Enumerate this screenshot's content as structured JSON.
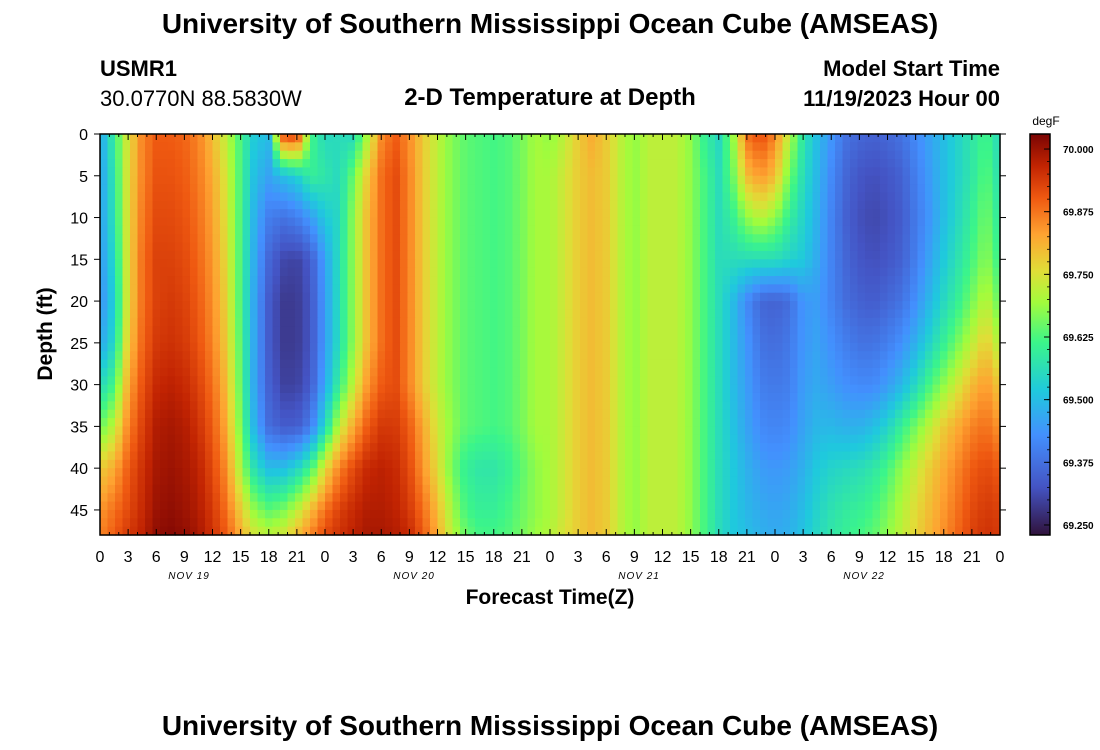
{
  "header": {
    "title": "University of Southern Mississippi Ocean Cube (AMSEAS)",
    "station_id": "USMR1",
    "coordinates": "30.0770N  88.5830W",
    "plot_title": "2-D Temperature at Depth",
    "model_start_label": "Model Start Time",
    "model_start_value": "11/19/2023 Hour 00"
  },
  "footer": {
    "title": "University of Southern Mississippi Ocean Cube (AMSEAS)"
  },
  "chart_data": {
    "type": "heatmap",
    "title": "2-D Temperature at Depth",
    "xlabel": "Forecast Time(Z)",
    "ylabel": "Depth (ft)",
    "units": "degF",
    "x_ticks": [
      "0",
      "3",
      "6",
      "9",
      "12",
      "15",
      "18",
      "21",
      "0",
      "3",
      "6",
      "9",
      "12",
      "15",
      "18",
      "21",
      "0",
      "3",
      "6",
      "9",
      "12",
      "15",
      "18",
      "21",
      "0",
      "3",
      "6",
      "9",
      "12",
      "15",
      "18",
      "21",
      "0"
    ],
    "date_labels": [
      "NOV 19",
      "NOV 20",
      "NOV 21",
      "NOV 22"
    ],
    "y_ticks": [
      "0",
      "5",
      "10",
      "15",
      "20",
      "25",
      "30",
      "35",
      "40",
      "45"
    ],
    "y_range_ft": [
      0,
      48
    ],
    "x_range_hours": [
      0,
      96
    ],
    "colorbar": {
      "label": "degF",
      "range": [
        69.23,
        70.03
      ],
      "ticks": [
        "70.000",
        "69.875",
        "69.750",
        "69.625",
        "69.500",
        "69.375",
        "69.250"
      ]
    },
    "depths_ft": [
      0,
      5,
      10,
      15,
      20,
      25,
      30,
      35,
      40,
      45,
      48
    ],
    "hours": [
      0,
      1.5,
      3,
      4.5,
      6,
      7.5,
      9,
      10.5,
      12,
      13.5,
      15,
      16.5,
      18,
      19.5,
      21,
      22.5,
      24,
      25.5,
      27,
      28.5,
      30,
      31.5,
      33,
      34.5,
      36,
      37.5,
      39,
      40.5,
      42,
      43.5,
      45,
      46.5,
      48,
      49.5,
      51,
      52.5,
      54,
      55.5,
      57,
      58.5,
      60,
      61.5,
      63,
      64.5,
      66,
      67.5,
      69,
      70.5,
      72,
      73.5,
      75,
      76.5,
      78,
      79.5,
      81,
      82.5,
      84,
      85.5,
      87,
      88.5,
      90,
      91.5,
      93,
      94.5,
      96
    ],
    "temperature_degF": [
      [
        69.46,
        69.6,
        69.75,
        69.86,
        69.9,
        69.9,
        69.89,
        69.86,
        69.8,
        69.72,
        69.62,
        69.52,
        69.5,
        69.92,
        69.95,
        69.62,
        69.55,
        69.56,
        69.55,
        69.7,
        69.85,
        69.9,
        69.85,
        69.78,
        69.72,
        69.67,
        69.64,
        69.63,
        69.62,
        69.63,
        69.66,
        69.7,
        69.68,
        69.72,
        69.78,
        69.82,
        69.78,
        69.72,
        69.68,
        69.72,
        69.72,
        69.72,
        69.68,
        69.6,
        69.55,
        69.68,
        69.88,
        69.92,
        69.86,
        69.72,
        69.58,
        69.5,
        69.44,
        69.38,
        69.36,
        69.35,
        69.36,
        69.38,
        69.42,
        69.46,
        69.5,
        69.54,
        69.58,
        69.62,
        69.55
      ],
      [
        69.45,
        69.58,
        69.76,
        69.86,
        69.91,
        69.91,
        69.9,
        69.87,
        69.82,
        69.74,
        69.62,
        69.5,
        69.46,
        69.5,
        69.53,
        69.6,
        69.58,
        69.55,
        69.65,
        69.78,
        69.88,
        69.92,
        69.86,
        69.78,
        69.72,
        69.67,
        69.64,
        69.63,
        69.62,
        69.63,
        69.66,
        69.7,
        69.7,
        69.74,
        69.78,
        69.8,
        69.78,
        69.72,
        69.68,
        69.72,
        69.72,
        69.72,
        69.68,
        69.62,
        69.56,
        69.65,
        69.8,
        69.84,
        69.8,
        69.66,
        69.56,
        69.49,
        69.42,
        69.36,
        69.33,
        69.32,
        69.33,
        69.35,
        69.4,
        69.45,
        69.5,
        69.54,
        69.58,
        69.64,
        69.56
      ],
      [
        69.45,
        69.57,
        69.76,
        69.87,
        69.92,
        69.92,
        69.91,
        69.88,
        69.83,
        69.75,
        69.62,
        69.48,
        69.4,
        69.38,
        69.4,
        69.45,
        69.52,
        69.55,
        69.68,
        69.8,
        69.88,
        69.92,
        69.86,
        69.78,
        69.72,
        69.67,
        69.64,
        69.63,
        69.62,
        69.63,
        69.66,
        69.7,
        69.7,
        69.74,
        69.78,
        69.8,
        69.78,
        69.72,
        69.68,
        69.72,
        69.72,
        69.72,
        69.68,
        69.62,
        69.56,
        69.6,
        69.68,
        69.72,
        69.68,
        69.6,
        69.54,
        69.48,
        69.41,
        69.35,
        69.32,
        69.31,
        69.32,
        69.34,
        69.39,
        69.44,
        69.5,
        69.55,
        69.6,
        69.66,
        69.58
      ],
      [
        69.44,
        69.55,
        69.76,
        69.88,
        69.93,
        69.93,
        69.92,
        69.89,
        69.84,
        69.76,
        69.62,
        69.47,
        69.36,
        69.31,
        69.3,
        69.34,
        69.46,
        69.56,
        69.68,
        69.8,
        69.88,
        69.92,
        69.86,
        69.78,
        69.72,
        69.67,
        69.64,
        69.63,
        69.62,
        69.63,
        69.66,
        69.7,
        69.7,
        69.74,
        69.78,
        69.8,
        69.78,
        69.72,
        69.68,
        69.72,
        69.72,
        69.72,
        69.68,
        69.62,
        69.56,
        69.56,
        69.56,
        69.56,
        69.56,
        69.54,
        69.52,
        69.47,
        69.41,
        69.36,
        69.33,
        69.32,
        69.33,
        69.35,
        69.4,
        69.46,
        69.52,
        69.57,
        69.62,
        69.68,
        69.6
      ],
      [
        69.43,
        69.53,
        69.76,
        69.88,
        69.93,
        69.94,
        69.93,
        69.9,
        69.85,
        69.77,
        69.62,
        69.46,
        69.34,
        69.29,
        69.29,
        69.33,
        69.45,
        69.56,
        69.68,
        69.8,
        69.88,
        69.92,
        69.86,
        69.78,
        69.72,
        69.67,
        69.64,
        69.63,
        69.62,
        69.63,
        69.66,
        69.7,
        69.7,
        69.74,
        69.78,
        69.8,
        69.78,
        69.72,
        69.68,
        69.72,
        69.72,
        69.72,
        69.68,
        69.62,
        69.56,
        69.5,
        69.42,
        69.36,
        69.35,
        69.37,
        69.44,
        69.45,
        69.41,
        69.37,
        69.35,
        69.34,
        69.36,
        69.38,
        69.43,
        69.49,
        69.55,
        69.6,
        69.66,
        69.72,
        69.64
      ],
      [
        69.46,
        69.55,
        69.78,
        69.89,
        69.94,
        69.95,
        69.94,
        69.91,
        69.86,
        69.78,
        69.63,
        69.46,
        69.34,
        69.29,
        69.29,
        69.33,
        69.45,
        69.56,
        69.68,
        69.8,
        69.88,
        69.92,
        69.86,
        69.78,
        69.72,
        69.67,
        69.64,
        69.63,
        69.62,
        69.63,
        69.66,
        69.7,
        69.7,
        69.74,
        69.78,
        69.8,
        69.78,
        69.72,
        69.68,
        69.72,
        69.72,
        69.72,
        69.68,
        69.62,
        69.56,
        69.5,
        69.44,
        69.38,
        69.37,
        69.39,
        69.44,
        69.46,
        69.43,
        69.4,
        69.38,
        69.38,
        69.4,
        69.43,
        69.48,
        69.54,
        69.6,
        69.66,
        69.72,
        69.78,
        69.7
      ],
      [
        69.55,
        69.62,
        69.82,
        69.91,
        69.96,
        69.97,
        69.96,
        69.93,
        69.88,
        69.8,
        69.64,
        69.46,
        69.35,
        69.3,
        69.3,
        69.34,
        69.47,
        69.6,
        69.72,
        69.84,
        69.9,
        69.92,
        69.86,
        69.78,
        69.72,
        69.67,
        69.64,
        69.63,
        69.62,
        69.63,
        69.66,
        69.7,
        69.7,
        69.74,
        69.78,
        69.8,
        69.78,
        69.72,
        69.68,
        69.72,
        69.72,
        69.72,
        69.68,
        69.62,
        69.56,
        69.5,
        69.45,
        69.4,
        69.39,
        69.4,
        69.45,
        69.47,
        69.45,
        69.43,
        69.42,
        69.42,
        69.45,
        69.49,
        69.55,
        69.62,
        69.68,
        69.74,
        69.8,
        69.84,
        69.78
      ],
      [
        69.65,
        69.72,
        69.86,
        69.93,
        69.98,
        69.99,
        69.98,
        69.95,
        69.9,
        69.82,
        69.66,
        69.48,
        69.37,
        69.34,
        69.34,
        69.4,
        69.55,
        69.72,
        69.82,
        69.9,
        69.94,
        69.94,
        69.9,
        69.82,
        69.74,
        69.68,
        69.64,
        69.63,
        69.62,
        69.63,
        69.66,
        69.7,
        69.7,
        69.74,
        69.78,
        69.8,
        69.78,
        69.72,
        69.68,
        69.72,
        69.72,
        69.72,
        69.68,
        69.62,
        69.56,
        69.51,
        69.46,
        69.42,
        69.41,
        69.42,
        69.46,
        69.49,
        69.49,
        69.48,
        69.48,
        69.5,
        69.54,
        69.6,
        69.66,
        69.72,
        69.78,
        69.82,
        69.86,
        69.88,
        69.84
      ],
      [
        69.78,
        69.82,
        69.9,
        69.95,
        69.99,
        70,
        69.99,
        69.97,
        69.92,
        69.85,
        69.7,
        69.56,
        69.5,
        69.5,
        69.54,
        69.62,
        69.76,
        69.86,
        69.92,
        69.96,
        69.97,
        69.96,
        69.92,
        69.84,
        69.76,
        69.66,
        69.6,
        69.58,
        69.58,
        69.6,
        69.64,
        69.68,
        69.7,
        69.74,
        69.78,
        69.8,
        69.78,
        69.72,
        69.68,
        69.72,
        69.72,
        69.72,
        69.68,
        69.62,
        69.56,
        69.52,
        69.48,
        69.45,
        69.44,
        69.45,
        69.48,
        69.52,
        69.54,
        69.55,
        69.56,
        69.58,
        69.62,
        69.68,
        69.73,
        69.78,
        69.82,
        69.86,
        69.9,
        69.92,
        69.9
      ],
      [
        69.84,
        69.88,
        69.92,
        69.96,
        70,
        70.01,
        70,
        69.98,
        69.94,
        69.88,
        69.78,
        69.68,
        69.64,
        69.66,
        69.72,
        69.8,
        69.88,
        69.93,
        69.96,
        69.98,
        69.98,
        69.97,
        69.94,
        69.88,
        69.8,
        69.7,
        69.62,
        69.6,
        69.6,
        69.62,
        69.65,
        69.68,
        69.7,
        69.74,
        69.78,
        69.8,
        69.78,
        69.72,
        69.68,
        69.72,
        69.72,
        69.72,
        69.68,
        69.62,
        69.56,
        69.52,
        69.49,
        69.47,
        69.46,
        69.47,
        69.5,
        69.54,
        69.57,
        69.59,
        69.6,
        69.62,
        69.66,
        69.71,
        69.76,
        69.8,
        69.84,
        69.88,
        69.92,
        69.94,
        69.93
      ],
      [
        69.86,
        69.9,
        69.94,
        69.97,
        70.01,
        70.02,
        70.01,
        69.99,
        69.95,
        69.9,
        69.82,
        69.74,
        69.72,
        69.74,
        69.8,
        69.86,
        69.92,
        69.95,
        69.97,
        69.99,
        69.99,
        69.98,
        69.96,
        69.9,
        69.82,
        69.72,
        69.65,
        69.62,
        69.62,
        69.63,
        69.66,
        69.69,
        69.71,
        69.75,
        69.78,
        69.8,
        69.78,
        69.72,
        69.68,
        69.72,
        69.72,
        69.72,
        69.68,
        69.62,
        69.56,
        69.52,
        69.5,
        69.48,
        69.47,
        69.48,
        69.51,
        69.55,
        69.58,
        69.6,
        69.62,
        69.64,
        69.68,
        69.72,
        69.77,
        69.81,
        69.85,
        69.89,
        69.93,
        69.95,
        69.94
      ]
    ]
  }
}
